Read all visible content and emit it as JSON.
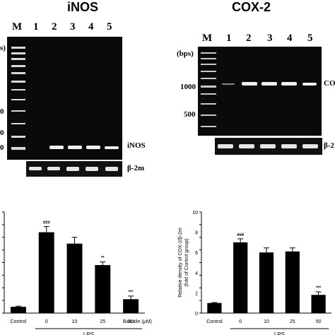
{
  "panels": {
    "inos": {
      "title": "iNOS",
      "lanes": [
        "M",
        "1",
        "2",
        "3",
        "4",
        "5"
      ],
      "bp_partial": [
        "s)",
        "0",
        "0",
        "0"
      ],
      "gene_label": "iNOS",
      "ref_label": "β-2m"
    },
    "cox2": {
      "title": "COX-2",
      "lanes": [
        "M",
        "1",
        "2",
        "3",
        "4",
        "5"
      ],
      "bp_unit": "(bps)",
      "bp_marks": [
        "1000",
        "500"
      ],
      "gene_label": "CO",
      "ref_label": "β-2"
    }
  },
  "chart_data": [
    {
      "type": "bar",
      "categories": [
        "Control",
        "0",
        "10",
        "25",
        "50"
      ],
      "values": [
        0.5,
        6.4,
        5.5,
        3.8,
        1.1
      ],
      "errors": [
        0.05,
        0.45,
        0.5,
        0.25,
        0.25
      ],
      "significance": [
        "",
        "###",
        "",
        "**",
        "***"
      ],
      "xtick_prefix": "Baicalin (μM)",
      "group_label": "LPS",
      "ylim": [
        0,
        8
      ],
      "ylabel": ""
    },
    {
      "type": "bar",
      "categories": [
        "Control",
        "0",
        "10",
        "25",
        "50"
      ],
      "values": [
        1.0,
        7.0,
        6.0,
        6.1,
        1.8
      ],
      "errors": [
        0.05,
        0.35,
        0.45,
        0.35,
        0.3
      ],
      "significance": [
        "",
        "###",
        "",
        "",
        "***"
      ],
      "group_label": "LPS",
      "ylim": [
        0,
        10
      ],
      "yticks": [
        0,
        2,
        4,
        6,
        8,
        10
      ],
      "ylabel": "Relative density of COX-2/β-2m (fold of Control group)"
    }
  ],
  "colors": {
    "bar": "#000000",
    "gel_bg": "#0a0a0a",
    "band": "#f2f2f2"
  }
}
